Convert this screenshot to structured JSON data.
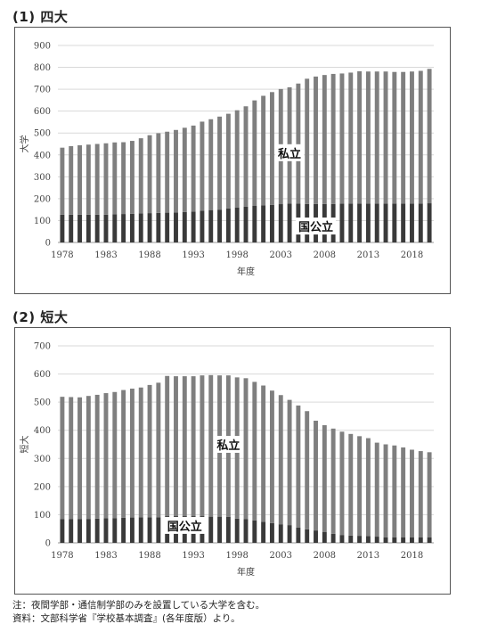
{
  "sections": [
    {
      "title": "(1) 四大"
    },
    {
      "title": "(2) 短大"
    }
  ],
  "notes": {
    "line1": "注：夜間学部・通信制学部のみを設置している大学を含む。",
    "line2": "資料：文部科学省『学校基本調査』(各年度版）より。"
  },
  "colors": {
    "private": "#7f7f7f",
    "public": "#3a3a3a"
  },
  "chart_data": [
    {
      "type": "bar",
      "stacked": true,
      "title": "(1) 四大",
      "xlabel": "年度",
      "ylabel": "大学",
      "ylim": [
        0,
        900
      ],
      "yticks": [
        0,
        100,
        200,
        300,
        400,
        500,
        600,
        700,
        800,
        900
      ],
      "xtick_labels": [
        "1978",
        "1983",
        "1988",
        "1993",
        "1998",
        "2003",
        "2008",
        "2013",
        "2018"
      ],
      "grid": true,
      "categories": [
        1978,
        1979,
        1980,
        1981,
        1982,
        1983,
        1984,
        1985,
        1986,
        1987,
        1988,
        1989,
        1990,
        1991,
        1992,
        1993,
        1994,
        1995,
        1996,
        1997,
        1998,
        1999,
        2000,
        2001,
        2002,
        2003,
        2004,
        2005,
        2006,
        2007,
        2008,
        2009,
        2010,
        2011,
        2012,
        2013,
        2014,
        2015,
        2016,
        2017,
        2018,
        2019,
        2020
      ],
      "series": [
        {
          "name": "国公立",
          "values": [
            127,
            127,
            127,
            127,
            127,
            127,
            129,
            130,
            131,
            133,
            134,
            135,
            136,
            137,
            139,
            141,
            145,
            148,
            150,
            155,
            160,
            164,
            167,
            170,
            172,
            175,
            177,
            177,
            176,
            176,
            176,
            176,
            178,
            178,
            178,
            178,
            178,
            178,
            178,
            178,
            178,
            178,
            179
          ]
        },
        {
          "name": "私立",
          "values": [
            306,
            313,
            317,
            320,
            323,
            326,
            328,
            328,
            333,
            343,
            356,
            364,
            370,
            377,
            385,
            393,
            407,
            415,
            425,
            433,
            444,
            458,
            482,
            500,
            515,
            526,
            532,
            549,
            572,
            582,
            589,
            594,
            594,
            598,
            604,
            603,
            603,
            603,
            601,
            601,
            603,
            606,
            614
          ]
        }
      ],
      "annotations": [
        {
          "text": "私立",
          "x": 2004,
          "y": 410
        },
        {
          "text": "国公立",
          "x": 2007,
          "y": 75
        }
      ]
    },
    {
      "type": "bar",
      "stacked": true,
      "title": "(2) 短大",
      "xlabel": "年度",
      "ylabel": "短大",
      "ylim": [
        0,
        700
      ],
      "yticks": [
        0,
        100,
        200,
        300,
        400,
        500,
        600,
        700
      ],
      "xtick_labels": [
        "1978",
        "1983",
        "1988",
        "1993",
        "1998",
        "2003",
        "2008",
        "2013",
        "2018"
      ],
      "grid": true,
      "categories": [
        1978,
        1979,
        1980,
        1981,
        1982,
        1983,
        1984,
        1985,
        1986,
        1987,
        1988,
        1989,
        1990,
        1991,
        1992,
        1993,
        1994,
        1995,
        1996,
        1997,
        1998,
        1999,
        2000,
        2001,
        2002,
        2003,
        2004,
        2005,
        2006,
        2007,
        2008,
        2009,
        2010,
        2011,
        2012,
        2013,
        2014,
        2015,
        2016,
        2017,
        2018,
        2019,
        2020
      ],
      "series": [
        {
          "name": "国公立",
          "values": [
            84,
            84,
            84,
            85,
            86,
            87,
            88,
            89,
            90,
            91,
            91,
            91,
            95,
            95,
            95,
            95,
            95,
            93,
            93,
            92,
            86,
            84,
            80,
            75,
            70,
            66,
            63,
            54,
            48,
            44,
            38,
            32,
            28,
            26,
            25,
            24,
            22,
            20,
            20,
            20,
            19,
            19,
            19
          ]
        },
        {
          "name": "私立",
          "values": [
            435,
            434,
            433,
            437,
            440,
            445,
            448,
            454,
            458,
            461,
            470,
            478,
            498,
            497,
            497,
            497,
            500,
            503,
            502,
            503,
            502,
            501,
            492,
            484,
            471,
            459,
            445,
            434,
            420,
            390,
            380,
            374,
            367,
            361,
            354,
            348,
            334,
            330,
            326,
            319,
            312,
            307,
            303
          ]
        }
      ],
      "annotations": [
        {
          "text": "私立",
          "x": 1997,
          "y": 350
        },
        {
          "text": "国公立",
          "x": 1992,
          "y": 62
        }
      ]
    }
  ]
}
